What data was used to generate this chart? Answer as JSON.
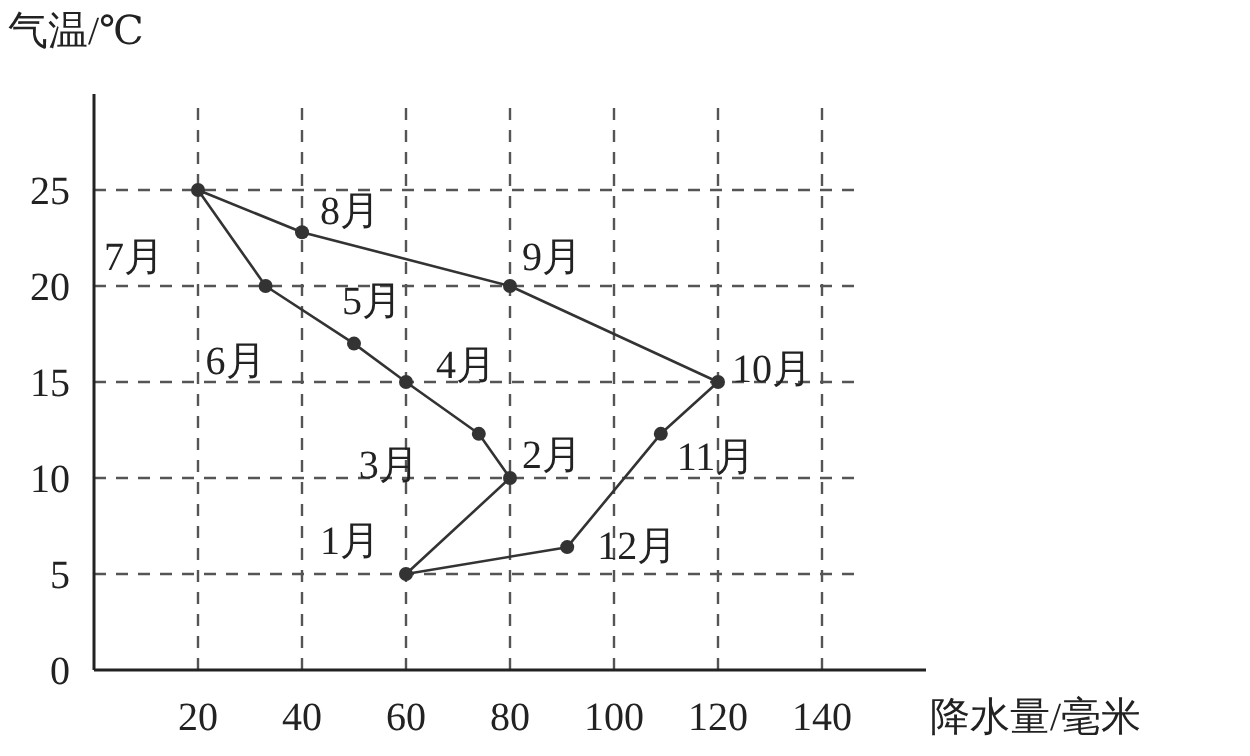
{
  "chart_data": {
    "type": "scatter",
    "xlabel": "降水量/毫米",
    "ylabel": "气温/℃",
    "x": [
      60,
      80,
      74,
      60,
      50,
      33,
      20,
      40,
      80,
      120,
      109,
      91
    ],
    "values": [
      5,
      10,
      12.3,
      15,
      17,
      20,
      25,
      22.8,
      20,
      15,
      12.3,
      6.4
    ],
    "color": "#333333",
    "marker": "circle",
    "line_style": "solid",
    "grid": true,
    "xlim": [
      0,
      160
    ],
    "ylim": [
      0,
      30
    ],
    "xticks": [
      20,
      40,
      60,
      80,
      100,
      120,
      140
    ],
    "yticks": [
      0,
      5,
      10,
      15,
      20,
      25
    ],
    "annotations": [
      {
        "text": "1月",
        "x": 60,
        "y": 5
      },
      {
        "text": "2月",
        "x": 80,
        "y": 10
      },
      {
        "text": "3月",
        "x": 74,
        "y": 12.3
      },
      {
        "text": "4月",
        "x": 60,
        "y": 15
      },
      {
        "text": "5月",
        "x": 50,
        "y": 17
      },
      {
        "text": "6月",
        "x": 33,
        "y": 20
      },
      {
        "text": "7月",
        "x": 20,
        "y": 25
      },
      {
        "text": "8月",
        "x": 40,
        "y": 22.8
      },
      {
        "text": "9月",
        "x": 80,
        "y": 20
      },
      {
        "text": "10月",
        "x": 120,
        "y": 15
      },
      {
        "text": "11月",
        "x": 109,
        "y": 12.3
      },
      {
        "text": "12月",
        "x": 91,
        "y": 6.4
      }
    ]
  }
}
